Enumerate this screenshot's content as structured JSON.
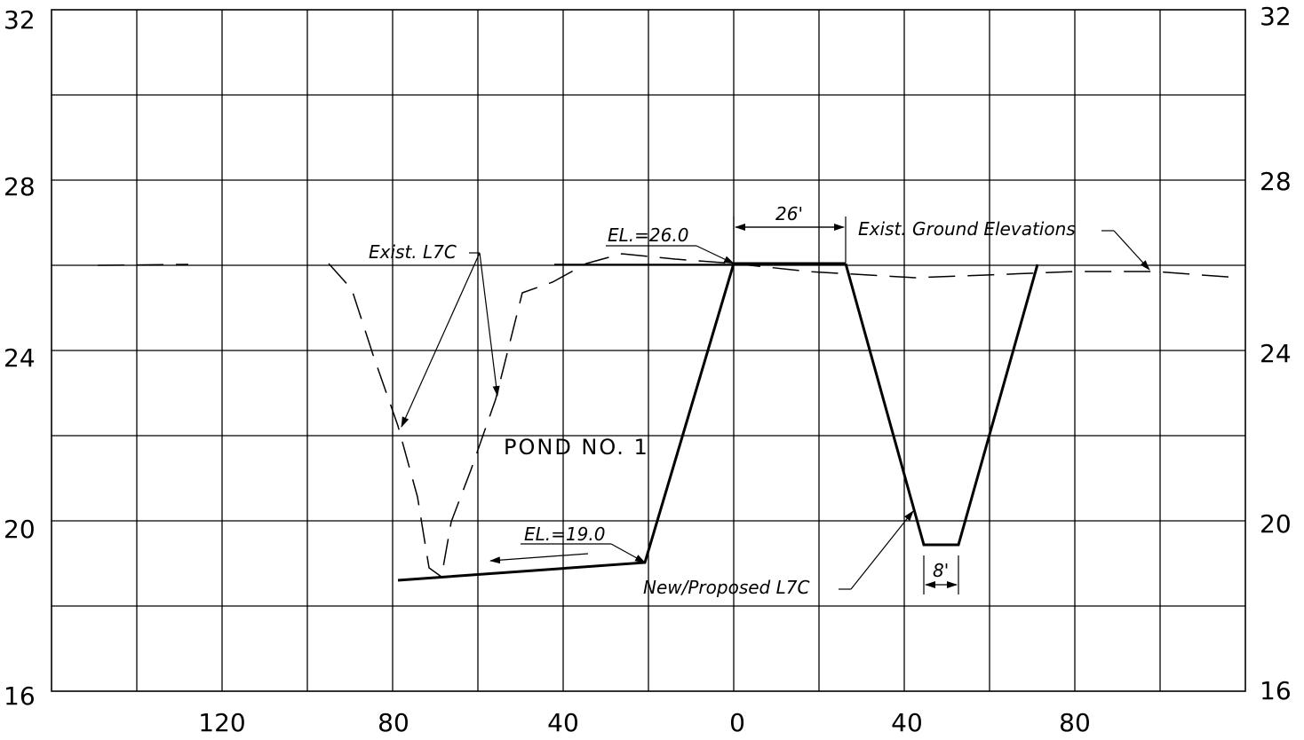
{
  "grid": {
    "y_ticks": [
      "32",
      "28",
      "24",
      "20",
      "16"
    ],
    "x_ticks": [
      "120",
      "80",
      "40",
      "0",
      "40",
      "80"
    ]
  },
  "annotations": {
    "exist_l7c": "Exist. L7C",
    "el_26": "EL.=26.0",
    "dim_26": "26'",
    "exist_ground": "Exist. Ground Elevations",
    "pond": "POND NO. 1",
    "el_19": "EL.=19.0",
    "new_l7c": "New/Proposed L7C",
    "dim_8": "8'"
  },
  "colors": {
    "line": "#000000",
    "background": "#ffffff"
  }
}
